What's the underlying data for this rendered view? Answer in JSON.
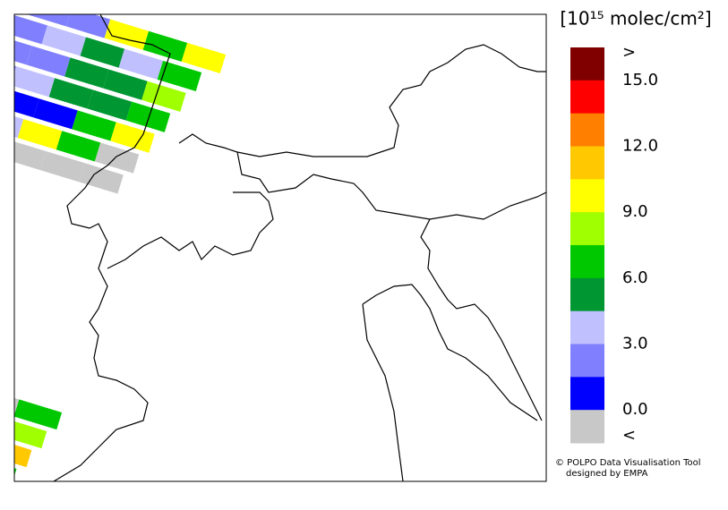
{
  "legend": {
    "title": "[10¹⁵ molec/cm²]",
    "colors": [
      "#800000",
      "#ff0000",
      "#ff8000",
      "#ffc800",
      "#ffff00",
      "#a0ff00",
      "#00c800",
      "#009632",
      "#c0c0ff",
      "#8080ff",
      "#0000ff",
      "#c8c8c8"
    ],
    "labels": [
      ">",
      "15.0",
      "12.0",
      "9.0",
      "6.0",
      "3.0",
      "0.0",
      "<"
    ]
  },
  "credit": {
    "line1": "© POLPO Data Visualisation Tool",
    "line2": "designed by EMPA"
  }
}
